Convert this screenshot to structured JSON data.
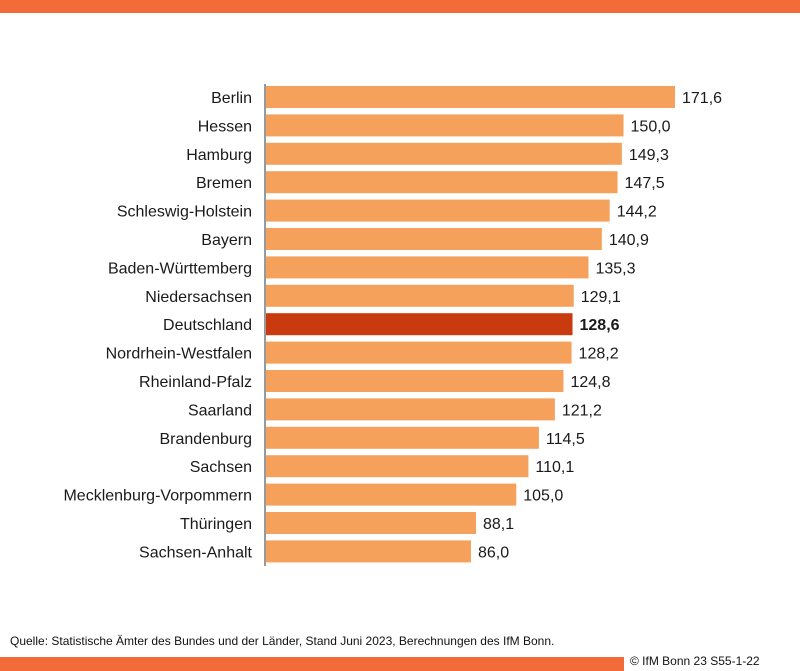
{
  "colors": {
    "accent": "#F26B38",
    "bar": "#F5A15B",
    "bar_highlight": "#C93A0E",
    "axis": "#333333"
  },
  "footer": {
    "source": "Quelle: Statistische Ämter des Bundes und der Länder, Stand Juni 2023, Berechnungen des IfM Bonn.",
    "copyright": "© IfM  Bonn 23 S55-1-22"
  },
  "chart_data": {
    "type": "bar",
    "orientation": "horizontal",
    "categories": [
      "Berlin",
      "Hessen",
      "Hamburg",
      "Bremen",
      "Schleswig-Holstein",
      "Bayern",
      "Baden-Württemberg",
      "Niedersachsen",
      "Deutschland",
      "Nordrhein-Westfalen",
      "Rheinland-Pfalz",
      "Saarland",
      "Brandenburg",
      "Sachsen",
      "Mecklenburg-Vorpommern",
      "Thüringen",
      "Sachsen-Anhalt"
    ],
    "values": [
      171.6,
      150.0,
      149.3,
      147.5,
      144.2,
      140.9,
      135.3,
      129.1,
      128.6,
      128.2,
      124.8,
      121.2,
      114.5,
      110.1,
      105.0,
      88.1,
      86.0
    ],
    "value_labels": [
      "171,6",
      "150,0",
      "149,3",
      "147,5",
      "144,2",
      "140,9",
      "135,3",
      "129,1",
      "128,6",
      "128,2",
      "124,8",
      "121,2",
      "114,5",
      "110,1",
      "105,0",
      "88,1",
      "86,0"
    ],
    "highlight": "Deutschland",
    "title": "",
    "xlabel": "",
    "ylabel": "",
    "xlim": [
      0,
      171.6
    ],
    "grid": false,
    "legend": false
  }
}
